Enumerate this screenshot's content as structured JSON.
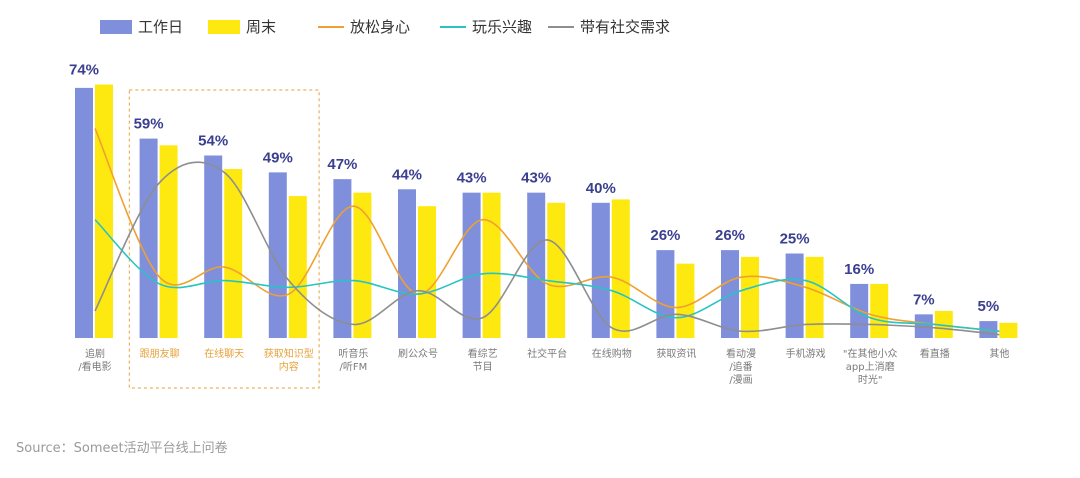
{
  "chart_data": {
    "type": "bar",
    "categories": [
      [
        "追剧",
        "/看电影"
      ],
      [
        "跟朋友聊"
      ],
      [
        "在线聊天"
      ],
      [
        "获取知识型",
        "内容"
      ],
      [
        "听音乐",
        "/听FM"
      ],
      [
        "刷公众号"
      ],
      [
        "看综艺",
        "节目"
      ],
      [
        "社交平台"
      ],
      [
        "在线购物"
      ],
      [
        "获取资讯"
      ],
      [
        "看动漫",
        "/追番",
        "/漫画"
      ],
      [
        "手机游戏"
      ],
      [
        "\"在其他小众",
        "app上消磨",
        "时光\""
      ],
      [
        "看直播"
      ],
      [
        "其他"
      ]
    ],
    "value_labels": [
      "74%",
      "59%",
      "54%",
      "49%",
      "47%",
      "44%",
      "43%",
      "43%",
      "40%",
      "26%",
      "26%",
      "25%",
      "16%",
      "7%",
      "5%"
    ],
    "series": [
      {
        "name": "工作日",
        "kind": "bar",
        "color": "#7f8fdc",
        "values": [
          74,
          59,
          54,
          49,
          47,
          44,
          43,
          43,
          40,
          26,
          26,
          25,
          16,
          7,
          5
        ]
      },
      {
        "name": "周末",
        "kind": "bar",
        "color": "#fde910",
        "values": [
          75,
          57,
          50,
          42,
          43,
          39,
          43,
          40,
          41,
          22,
          24,
          24,
          16,
          8,
          4.5
        ]
      },
      {
        "name": "放松身心",
        "kind": "line",
        "color": "#f0a030",
        "values": [
          62,
          18,
          21,
          13,
          39,
          13,
          35,
          16,
          18,
          9,
          18,
          15,
          7,
          4,
          2
        ]
      },
      {
        "name": "玩乐兴趣",
        "kind": "line",
        "color": "#28c4c4",
        "values": [
          35,
          16,
          17,
          15,
          17,
          13,
          19,
          17,
          14,
          6,
          14,
          17,
          6,
          4,
          2
        ]
      },
      {
        "name": "带有社交需求",
        "kind": "line",
        "color": "#8e8e8e",
        "values": [
          8,
          46,
          49,
          17,
          4,
          14,
          6,
          29,
          3,
          7,
          2,
          4,
          4,
          3,
          1
        ]
      }
    ],
    "highlight": {
      "from": 1,
      "to": 3,
      "color": "#e6a23c"
    },
    "ylim": [
      0,
      100
    ],
    "grid": false,
    "legend_position": "top-left",
    "title": "",
    "xlabel": "",
    "ylabel": ""
  },
  "source": "Source：Someet活动平台线上问卷"
}
